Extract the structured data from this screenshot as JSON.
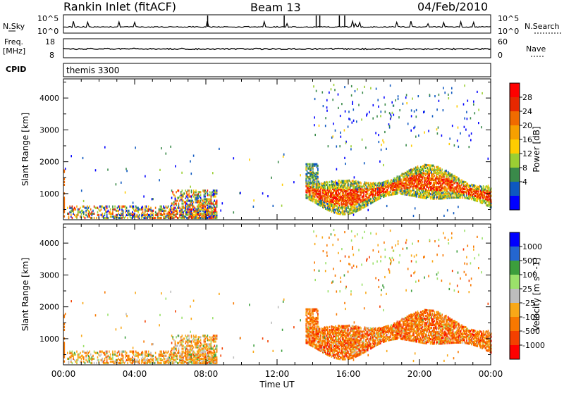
{
  "header": {
    "station": "Rankin Inlet (fitACF)",
    "beam": "Beam 13",
    "date": "04/Feb/2010"
  },
  "strip_nsky": {
    "left_label": "N.Sky",
    "right_label": "N.Search",
    "y_ticks": [
      "10^5",
      "10^0"
    ],
    "y2_ticks": [
      "10^5",
      "10^0"
    ]
  },
  "strip_freq": {
    "left_label_1": "Freq.",
    "left_label_2": "[MHz]",
    "right_label": "Nave",
    "y_ticks": [
      "18",
      "8"
    ],
    "y2_ticks": [
      "60",
      "0"
    ]
  },
  "cpid": {
    "label": "CPID",
    "value": "themis 3300"
  },
  "colors": {
    "power_scale": [
      "#0000ff",
      "#0d58c0",
      "#3a8a4a",
      "#9bcf33",
      "#ffcc00",
      "#f7a000",
      "#f06b00",
      "#e62800",
      "#ff0000"
    ],
    "velocity_scale": [
      "#ff0000",
      "#f34000",
      "#f87800",
      "#f9a817",
      "#bdbdbd",
      "#9be16a",
      "#3c9e3c",
      "#2466cf",
      "#0000ff"
    ]
  },
  "chart_data": [
    {
      "type": "heatmap",
      "title": "Power",
      "xlabel": "Time UT",
      "ylabel": "Slant Range [km]",
      "xlim": [
        "00:00",
        "24:00"
      ],
      "ylim": [
        180,
        4600
      ],
      "y_ticks": [
        1000,
        2000,
        3000,
        4000
      ],
      "x_tick_labels": [
        "00:00",
        "04:00",
        "08:00",
        "12:00",
        "16:00",
        "20:00",
        "00:00"
      ],
      "colorbar": {
        "label": "Power [dB]",
        "tick_labels": [
          "4",
          "8",
          "12",
          "16",
          "20",
          "24",
          "28"
        ]
      }
    },
    {
      "type": "heatmap",
      "title": "Velocity",
      "xlabel": "Time UT",
      "ylabel": "Slant Range [km]",
      "xlim": [
        "00:00",
        "24:00"
      ],
      "ylim": [
        180,
        4600
      ],
      "y_ticks": [
        1000,
        2000,
        3000,
        4000
      ],
      "x_tick_labels": [
        "00:00",
        "04:00",
        "08:00",
        "12:00",
        "16:00",
        "20:00",
        "00:00"
      ],
      "colorbar": {
        "label": "Velocity [m s^-1]",
        "tick_labels": [
          "1000",
          "500",
          "100",
          "25",
          "-25",
          "-100",
          "-500",
          "-1000"
        ]
      }
    }
  ]
}
